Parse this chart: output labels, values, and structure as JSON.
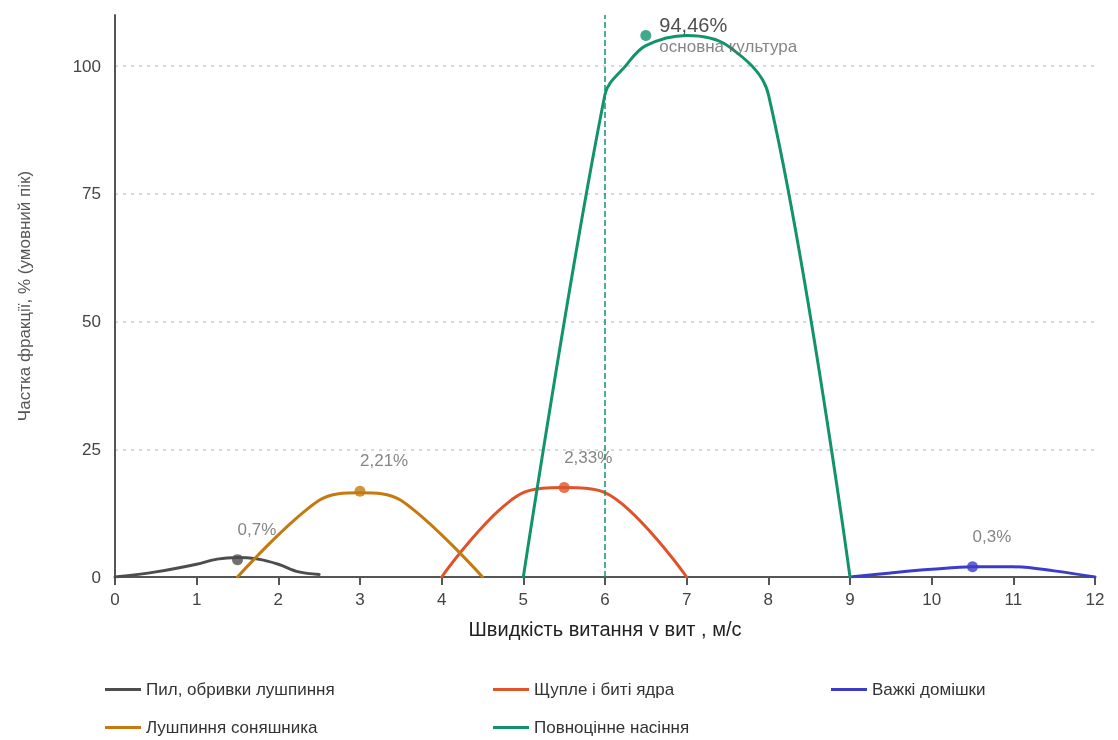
{
  "chart_data": {
    "type": "line",
    "xlabel": "Швидкість витання v вит , м/с",
    "ylabel": "Частка фракції, % (умовний пік)",
    "xlim": [
      0,
      12
    ],
    "xticks": [
      0,
      1,
      2,
      3,
      4,
      5,
      6,
      7,
      8,
      9,
      10,
      11,
      12
    ],
    "ylim": [
      0,
      110
    ],
    "yticks": [
      0,
      25,
      50,
      75,
      100
    ],
    "grid": "y",
    "legend": "bottom",
    "marker": "none",
    "line_style": "solid",
    "series": [
      {
        "name": "Пил, обривки лушпиння",
        "color": "#4d4d4d",
        "x": [
          0,
          0.5,
          1,
          1.25,
          1.5,
          1.75,
          2,
          2.25,
          2.5
        ],
        "values": [
          0,
          1,
          2.5,
          3.5,
          3.8,
          3.5,
          2.5,
          1,
          0.5
        ]
      },
      {
        "name": "Щупле і биті ядра",
        "color": "#e0522a",
        "x": [
          4,
          5,
          5.5,
          6,
          7
        ],
        "values": [
          0,
          16.5,
          17.5,
          16.5,
          0
        ]
      },
      {
        "name": "Важкі домішки",
        "color": "#3c3ccc",
        "x": [
          9,
          9.5,
          10,
          10.5,
          11,
          11.5,
          12
        ],
        "values": [
          0,
          0.8,
          1.5,
          2,
          2,
          1.2,
          0
        ]
      },
      {
        "name": "Лушпиння соняшника",
        "color": "#c47a0e",
        "x": [
          1.5,
          2.5,
          3,
          3.5,
          4.5
        ],
        "values": [
          0,
          15,
          16.5,
          15,
          0
        ]
      },
      {
        "name": "Повноцінне насіння",
        "color": "#13936b",
        "x": [
          5,
          6,
          6.25,
          6.5,
          7,
          7.5,
          8,
          9
        ],
        "values": [
          0,
          94.5,
          100,
          104,
          106,
          104,
          94.5,
          0
        ]
      }
    ],
    "ref_lines": [
      {
        "axis": "x",
        "value": 6,
        "color": "#13936b",
        "line_style": "dashed"
      }
    ],
    "annotations": [
      {
        "text": "0,7%",
        "x": 1.5,
        "y": 3.4
      },
      {
        "text": "2,21%",
        "x": 3,
        "y": 16.8
      },
      {
        "text": "2,33%",
        "x": 5.5,
        "y": 17.5
      },
      {
        "text": "94,46%",
        "x": 6.5,
        "y": 106
      },
      "основна культура",
      {
        "text": "0,3%",
        "x": 10.5,
        "y": 2
      }
    ]
  }
}
